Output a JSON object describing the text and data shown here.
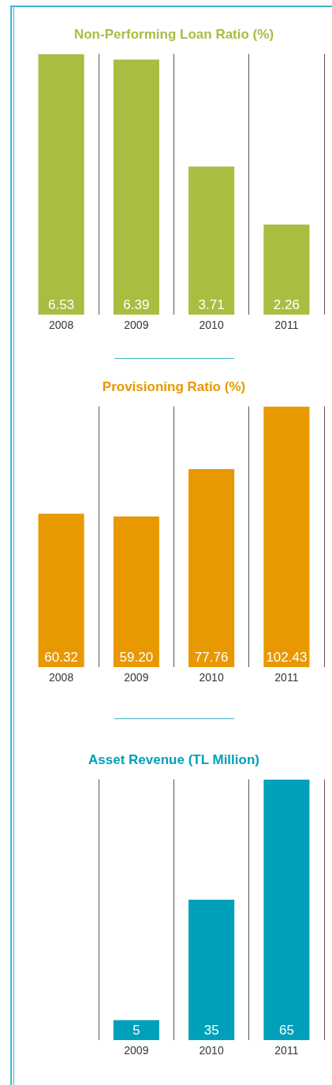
{
  "chart_data": [
    {
      "type": "bar",
      "title": "Non-Performing Loan Ratio (%)",
      "categories": [
        "2008",
        "2009",
        "2010",
        "2011"
      ],
      "values": [
        6.53,
        6.39,
        3.71,
        2.26
      ],
      "value_labels": [
        "6.53",
        "6.39",
        "3.71",
        "2.26"
      ],
      "color": "#a9bd41",
      "grid": "x"
    },
    {
      "type": "bar",
      "title": "Provisioning Ratio (%)",
      "categories": [
        "2008",
        "2009",
        "2010",
        "2011"
      ],
      "values": [
        60.32,
        59.2,
        77.76,
        102.43
      ],
      "value_labels": [
        "60.32",
        "59.20",
        "77.76",
        "102.43"
      ],
      "color": "#e89800",
      "grid": "x"
    },
    {
      "type": "bar",
      "title": "Asset Revenue (TL Million)",
      "categories": [
        null,
        "2009",
        "2010",
        "2011"
      ],
      "values": [
        null,
        5,
        35,
        65
      ],
      "value_labels": [
        null,
        "5",
        "35",
        "65"
      ],
      "color": "#00a0bb",
      "grid": "x"
    }
  ]
}
